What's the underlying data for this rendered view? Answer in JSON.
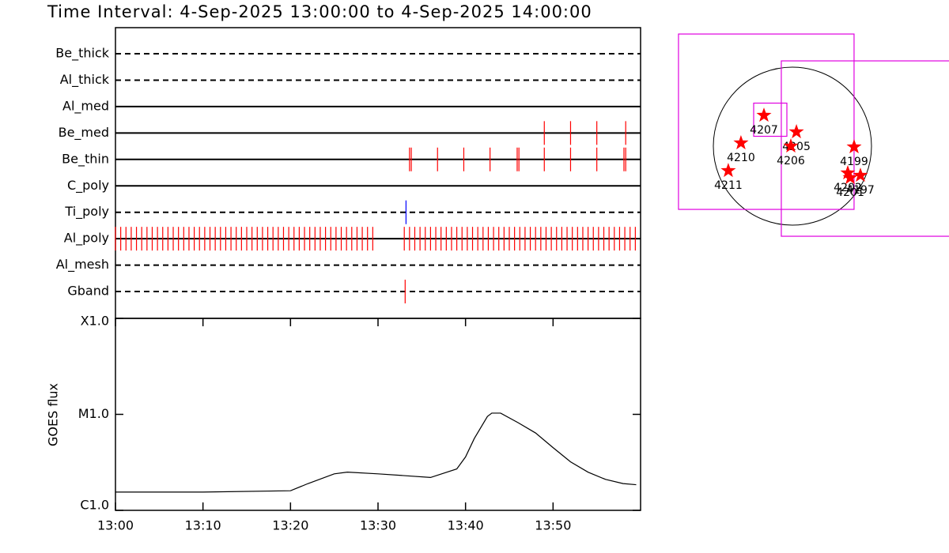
{
  "chart_data": [
    {
      "type": "event",
      "title": "Time Interval:  4-Sep-2025 13:00:00 to  4-Sep-2025 14:00:00",
      "xlim": [
        0,
        60
      ],
      "series": [
        {
          "name": "Be_thick",
          "style": "dashed",
          "color": "#ff0000",
          "times": []
        },
        {
          "name": "Al_thick",
          "style": "dashed",
          "color": "#ff0000",
          "times": []
        },
        {
          "name": "Al_med",
          "style": "solid",
          "color": "#ff0000",
          "times": []
        },
        {
          "name": "Be_med",
          "style": "solid",
          "color": "#ff0000",
          "times": [
            49.0,
            52.0,
            55.0,
            58.3
          ]
        },
        {
          "name": "Be_thin",
          "style": "solid",
          "color": "#ff0000",
          "times": [
            33.6,
            33.8,
            36.8,
            39.8,
            42.8,
            45.9,
            46.1,
            49.0,
            52.0,
            55.0,
            58.1,
            58.3
          ]
        },
        {
          "name": "C_poly",
          "style": "solid",
          "color": "#ff0000",
          "times": []
        },
        {
          "name": "Ti_poly",
          "style": "dashed",
          "color": "#0000ff",
          "times": [
            33.2
          ]
        },
        {
          "name": "Al_poly",
          "style": "solid",
          "color": "#ff0000",
          "times": [
            0,
            0.6,
            1.2,
            1.8,
            2.4,
            3,
            3.6,
            4.2,
            4.8,
            5.4,
            6,
            6.6,
            7.2,
            7.8,
            8.4,
            9,
            9.6,
            10.2,
            10.8,
            11.4,
            12,
            12.6,
            13.2,
            13.8,
            14.4,
            15,
            15.6,
            16.2,
            16.8,
            17.4,
            18,
            18.6,
            19.2,
            19.8,
            20.4,
            21,
            21.6,
            22.2,
            22.8,
            23.4,
            24,
            24.6,
            25.2,
            25.8,
            26.4,
            27,
            27.6,
            28.2,
            28.8,
            29.4,
            33,
            33.6,
            34.2,
            34.8,
            35.4,
            36,
            36.6,
            37.2,
            37.8,
            38.4,
            39,
            39.6,
            40.2,
            40.8,
            41.4,
            42,
            42.6,
            43.2,
            43.8,
            44.4,
            45,
            45.6,
            46.2,
            46.8,
            47.4,
            48,
            48.6,
            49.2,
            49.8,
            50.4,
            51,
            51.6,
            52.2,
            52.8,
            53.4,
            54,
            54.6,
            55.2,
            55.8,
            56.4,
            57,
            57.6,
            58.2,
            58.8,
            59.4
          ]
        },
        {
          "name": "Al_mesh",
          "style": "dashed",
          "color": "#ff0000",
          "times": []
        },
        {
          "name": "Gband",
          "style": "dashed",
          "color": "#ff0000",
          "times": [
            33.1
          ]
        }
      ]
    },
    {
      "type": "line",
      "y_label": "GOES flux",
      "log": true,
      "color": "#000000",
      "x": [
        0,
        10,
        20,
        22,
        25,
        26.5,
        30,
        33,
        36,
        39,
        40,
        41,
        42.5,
        43,
        44,
        46,
        48,
        50,
        52,
        54,
        56,
        58,
        59.5
      ],
      "values": [
        1.55e-06,
        1.55e-06,
        1.6e-06,
        1.9e-06,
        2.4e-06,
        2.5e-06,
        2.4e-06,
        2.3e-06,
        2.2e-06,
        2.7e-06,
        3.6e-06,
        5.6e-06,
        9.5e-06,
        1.03e-05,
        1.03e-05,
        8.2e-06,
        6.4e-06,
        4.5e-06,
        3.2e-06,
        2.5e-06,
        2.1e-06,
        1.9e-06,
        1.85e-06
      ],
      "xlim": [
        0,
        60
      ],
      "xticks": [
        {
          "value": 0,
          "label": "13:00"
        },
        {
          "value": 10,
          "label": "13:10"
        },
        {
          "value": 20,
          "label": "13:20"
        },
        {
          "value": 30,
          "label": "13:30"
        },
        {
          "value": 40,
          "label": "13:40"
        },
        {
          "value": 50,
          "label": "13:50"
        }
      ],
      "ylim": [
        1e-06,
        0.0001
      ],
      "yticks": [
        {
          "value": 1e-06,
          "label": "C1.0"
        },
        {
          "value": 1e-05,
          "label": "M1.0"
        },
        {
          "value": 0.0001,
          "label": "X1.0"
        }
      ]
    },
    {
      "type": "map",
      "marker_color": "#ff0000",
      "box_color": "#e000e0",
      "points": [
        {
          "name": "4207",
          "x": -342,
          "y": 370
        },
        {
          "name": "4205",
          "x": 48,
          "y": 171
        },
        {
          "name": "4206",
          "x": -19,
          "y": 0
        },
        {
          "name": "4210",
          "x": -618,
          "y": 38
        },
        {
          "name": "4211",
          "x": -770,
          "y": -295
        },
        {
          "name": "4199",
          "x": 741,
          "y": -10
        },
        {
          "name": "4202",
          "x": 665,
          "y": -323
        },
        {
          "name": "4197",
          "x": 817,
          "y": -352
        },
        {
          "name": "4201",
          "x": 694,
          "y": -380
        }
      ],
      "boxes": [
        {
          "x": -314,
          "y": 294,
          "size": 2109
        },
        {
          "x": 921,
          "y": -29,
          "size": 2109
        },
        {
          "x": -266,
          "y": 318,
          "size": 399
        }
      ]
    }
  ]
}
